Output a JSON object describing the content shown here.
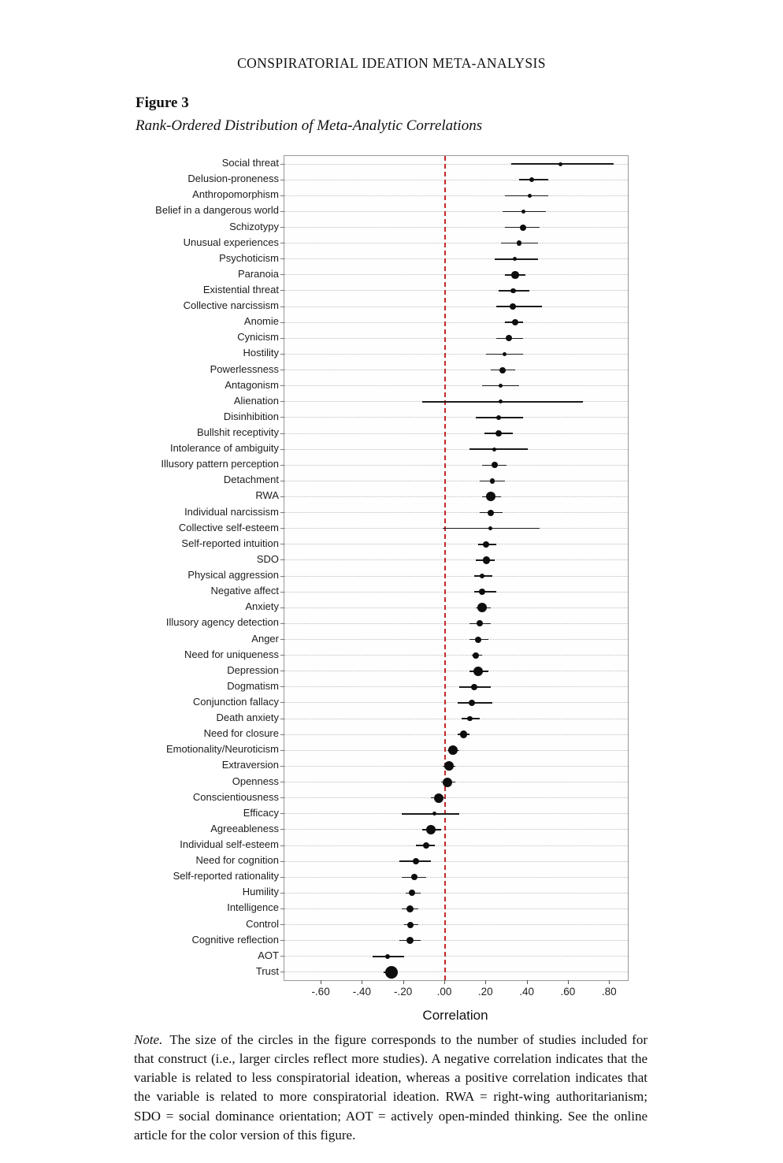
{
  "page": {
    "running_head": "CONSPIRATORIAL IDEATION META-ANALYSIS",
    "figure_label": "Figure 3",
    "figure_title": "Rank-Ordered Distribution of Meta-Analytic Correlations",
    "note_lead": "Note.",
    "note_text": "The size of the circles in the figure corresponds to the number of studies included for that construct (i.e., larger circles reflect more studies). A negative correlation indicates that the variable is related to less conspiratorial ideation, whereas a positive correlation indicates that the variable is related to more conspiratorial ideation. RWA = right-wing authoritarianism; SDO = social dominance orientation; AOT = actively open-minded thinking. See the online article for the color version of this figure."
  },
  "chart_data": {
    "type": "scatter",
    "subtype": "forest-plot",
    "title": "Rank-Ordered Distribution of Meta-Analytic Correlations",
    "xlabel": "Correlation",
    "ylabel": "",
    "xlim": [
      -0.78,
      0.887
    ],
    "grid": "dotted-horizontal",
    "point_color": "#0d0d0d",
    "zero_line": {
      "value": 0,
      "color": "#c22a2a",
      "style": "dashed"
    },
    "size_meaning": "circle size corresponds to number of studies",
    "x_ticks": [
      {
        "value": -0.6,
        "label": "-.60"
      },
      {
        "value": -0.4,
        "label": "-.40"
      },
      {
        "value": -0.2,
        "label": "-.20"
      },
      {
        "value": 0.0,
        "label": ".00"
      },
      {
        "value": 0.2,
        "label": ".20"
      },
      {
        "value": 0.4,
        "label": ".40"
      },
      {
        "value": 0.6,
        "label": ".60"
      },
      {
        "value": 0.8,
        "label": ".80"
      }
    ],
    "rows": [
      {
        "label": "Social threat",
        "r": 0.56,
        "ci": [
          0.32,
          0.82
        ],
        "size": 1
      },
      {
        "label": "Delusion-proneness",
        "r": 0.42,
        "ci": [
          0.36,
          0.5
        ],
        "size": 2
      },
      {
        "label": "Anthropomorphism",
        "r": 0.41,
        "ci": [
          0.29,
          0.5
        ],
        "size": 1
      },
      {
        "label": "Belief in a dangerous world",
        "r": 0.38,
        "ci": [
          0.28,
          0.49
        ],
        "size": 1
      },
      {
        "label": "Schizotypy",
        "r": 0.38,
        "ci": [
          0.29,
          0.46
        ],
        "size": 3
      },
      {
        "label": "Unusual experiences",
        "r": 0.36,
        "ci": [
          0.27,
          0.45
        ],
        "size": 2
      },
      {
        "label": "Psychoticism",
        "r": 0.34,
        "ci": [
          0.24,
          0.45
        ],
        "size": 1
      },
      {
        "label": "Paranoia",
        "r": 0.34,
        "ci": [
          0.29,
          0.39
        ],
        "size": 4
      },
      {
        "label": "Existential threat",
        "r": 0.33,
        "ci": [
          0.26,
          0.41
        ],
        "size": 2
      },
      {
        "label": "Collective narcissism",
        "r": 0.33,
        "ci": [
          0.25,
          0.47
        ],
        "size": 3
      },
      {
        "label": "Anomie",
        "r": 0.34,
        "ci": [
          0.29,
          0.38
        ],
        "size": 3
      },
      {
        "label": "Cynicism",
        "r": 0.31,
        "ci": [
          0.25,
          0.38
        ],
        "size": 3
      },
      {
        "label": "Hostility",
        "r": 0.29,
        "ci": [
          0.2,
          0.38
        ],
        "size": 1
      },
      {
        "label": "Powerlessness",
        "r": 0.28,
        "ci": [
          0.22,
          0.34
        ],
        "size": 3
      },
      {
        "label": "Antagonism",
        "r": 0.27,
        "ci": [
          0.18,
          0.36
        ],
        "size": 1
      },
      {
        "label": "Alienation",
        "r": 0.27,
        "ci": [
          -0.11,
          0.67
        ],
        "size": 1
      },
      {
        "label": "Disinhibition",
        "r": 0.26,
        "ci": [
          0.15,
          0.38
        ],
        "size": 2
      },
      {
        "label": "Bullshit receptivity",
        "r": 0.26,
        "ci": [
          0.19,
          0.33
        ],
        "size": 3
      },
      {
        "label": "Intolerance of ambiguity",
        "r": 0.24,
        "ci": [
          0.12,
          0.4
        ],
        "size": 1
      },
      {
        "label": "Illusory pattern perception",
        "r": 0.24,
        "ci": [
          0.18,
          0.3
        ],
        "size": 3
      },
      {
        "label": "Detachment",
        "r": 0.23,
        "ci": [
          0.17,
          0.29
        ],
        "size": 2
      },
      {
        "label": "RWA",
        "r": 0.22,
        "ci": [
          0.18,
          0.27
        ],
        "size": 5
      },
      {
        "label": "Individual narcissism",
        "r": 0.22,
        "ci": [
          0.17,
          0.28
        ],
        "size": 3
      },
      {
        "label": "Collective self-esteem",
        "r": 0.22,
        "ci": [
          -0.01,
          0.46
        ],
        "size": 1
      },
      {
        "label": "Self-reported intuition",
        "r": 0.2,
        "ci": [
          0.16,
          0.25
        ],
        "size": 3
      },
      {
        "label": "SDO",
        "r": 0.2,
        "ci": [
          0.15,
          0.24
        ],
        "size": 4
      },
      {
        "label": "Physical aggression",
        "r": 0.18,
        "ci": [
          0.14,
          0.23
        ],
        "size": 2
      },
      {
        "label": "Negative affect",
        "r": 0.18,
        "ci": [
          0.14,
          0.25
        ],
        "size": 3
      },
      {
        "label": "Anxiety",
        "r": 0.18,
        "ci": [
          0.15,
          0.22
        ],
        "size": 5
      },
      {
        "label": "Illusory agency detection",
        "r": 0.17,
        "ci": [
          0.12,
          0.22
        ],
        "size": 3
      },
      {
        "label": "Anger",
        "r": 0.16,
        "ci": [
          0.12,
          0.21
        ],
        "size": 3
      },
      {
        "label": "Need for uniqueness",
        "r": 0.15,
        "ci": [
          0.13,
          0.18
        ],
        "size": 3
      },
      {
        "label": "Depression",
        "r": 0.16,
        "ci": [
          0.12,
          0.21
        ],
        "size": 5
      },
      {
        "label": "Dogmatism",
        "r": 0.14,
        "ci": [
          0.07,
          0.22
        ],
        "size": 3
      },
      {
        "label": "Conjunction fallacy",
        "r": 0.13,
        "ci": [
          0.06,
          0.23
        ],
        "size": 3
      },
      {
        "label": "Death anxiety",
        "r": 0.12,
        "ci": [
          0.08,
          0.17
        ],
        "size": 2
      },
      {
        "label": "Need for closure",
        "r": 0.09,
        "ci": [
          0.06,
          0.12
        ],
        "size": 4
      },
      {
        "label": "Emotionality/Neuroticism",
        "r": 0.04,
        "ci": [
          0.01,
          0.07
        ],
        "size": 5
      },
      {
        "label": "Extraversion",
        "r": 0.02,
        "ci": [
          -0.01,
          0.05
        ],
        "size": 5
      },
      {
        "label": "Openness",
        "r": 0.01,
        "ci": [
          -0.02,
          0.05
        ],
        "size": 5
      },
      {
        "label": "Conscientiousness",
        "r": -0.03,
        "ci": [
          -0.07,
          0.0
        ],
        "size": 5
      },
      {
        "label": "Efficacy",
        "r": -0.05,
        "ci": [
          -0.21,
          0.07
        ],
        "size": 1
      },
      {
        "label": "Agreeableness",
        "r": -0.07,
        "ci": [
          -0.11,
          -0.02
        ],
        "size": 5
      },
      {
        "label": "Individual self-esteem",
        "r": -0.09,
        "ci": [
          -0.14,
          -0.05
        ],
        "size": 3
      },
      {
        "label": "Need for cognition",
        "r": -0.14,
        "ci": [
          -0.22,
          -0.07
        ],
        "size": 3
      },
      {
        "label": "Self-reported rationality",
        "r": -0.15,
        "ci": [
          -0.21,
          -0.09
        ],
        "size": 3
      },
      {
        "label": "Humility",
        "r": -0.16,
        "ci": [
          -0.19,
          -0.12
        ],
        "size": 3
      },
      {
        "label": "Intelligence",
        "r": -0.17,
        "ci": [
          -0.21,
          -0.13
        ],
        "size": 4
      },
      {
        "label": "Control",
        "r": -0.17,
        "ci": [
          -0.2,
          -0.13
        ],
        "size": 3
      },
      {
        "label": "Cognitive reflection",
        "r": -0.17,
        "ci": [
          -0.22,
          -0.12
        ],
        "size": 4
      },
      {
        "label": "AOT",
        "r": -0.28,
        "ci": [
          -0.35,
          -0.2
        ],
        "size": 2
      },
      {
        "label": "Trust",
        "r": -0.26,
        "ci": [
          -0.3,
          -0.23
        ],
        "size": 6
      }
    ]
  }
}
